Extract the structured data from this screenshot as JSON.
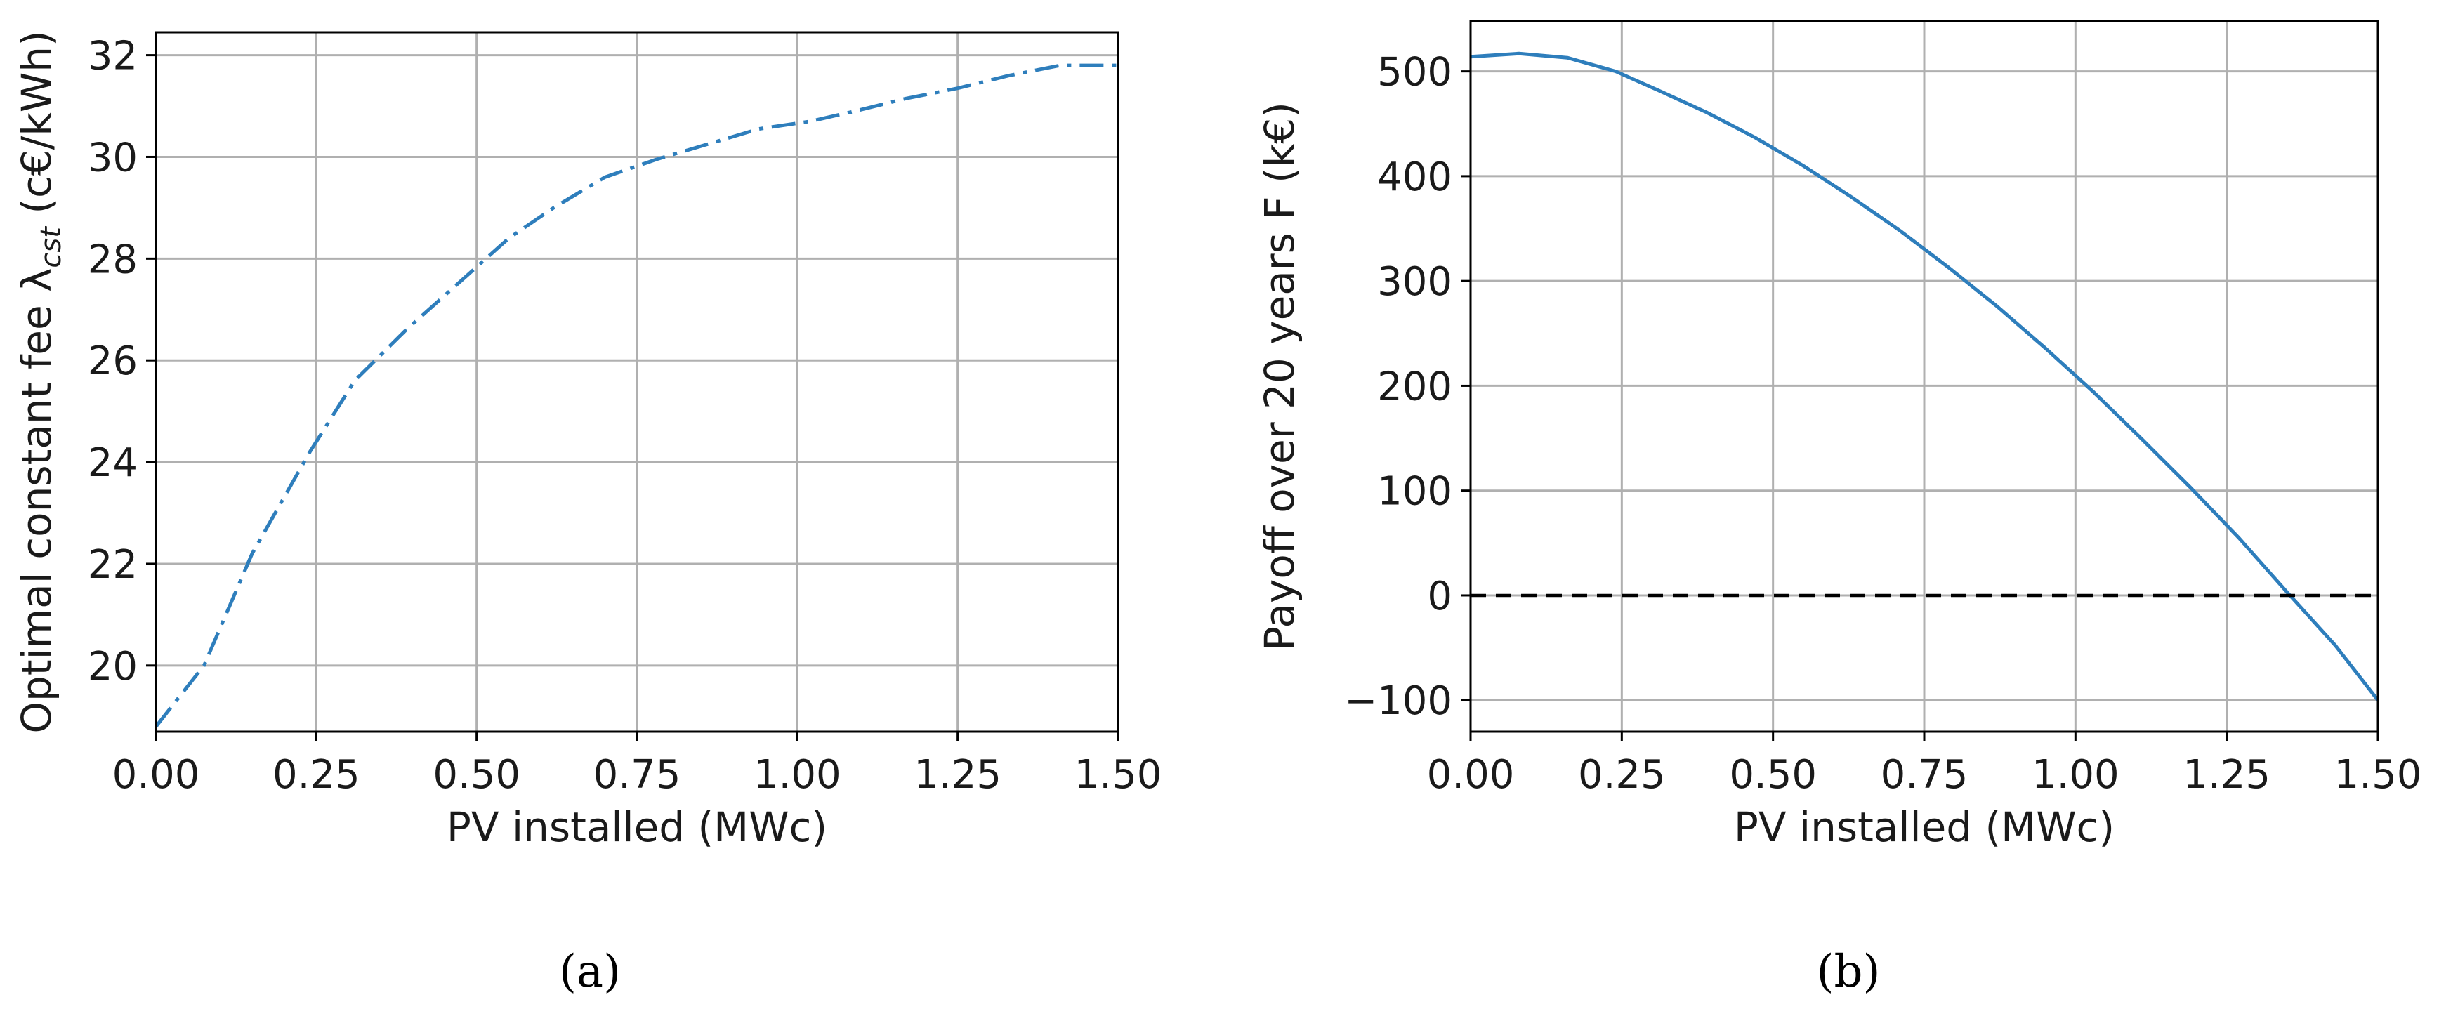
{
  "chart_data": [
    {
      "id": "a",
      "type": "line",
      "panel_label": "(a)",
      "xlabel": "PV installed (MWc)",
      "ylabel_main": "Optimal constant fee λ",
      "ylabel_sub": "cst",
      "ylabel_unit": " (c€/kWh)",
      "xlim": [
        0,
        1.5
      ],
      "ylim": [
        18.7,
        32.45
      ],
      "xticks": [
        0,
        0.25,
        0.5,
        0.75,
        1.0,
        1.25,
        1.5
      ],
      "xtick_labels": [
        "0.00",
        "0.25",
        "0.50",
        "0.75",
        "1.00",
        "1.25",
        "1.50"
      ],
      "yticks": [
        20,
        22,
        24,
        26,
        28,
        30,
        32
      ],
      "ytick_labels": [
        "20",
        "22",
        "24",
        "26",
        "28",
        "30",
        "32"
      ],
      "grid": true,
      "series": [
        {
          "style": "dashdot",
          "color": "#2e7ebc",
          "x": [
            0,
            0.075,
            0.15,
            0.24,
            0.31,
            0.39,
            0.47,
            0.55,
            0.62,
            0.7,
            0.78,
            0.86,
            0.94,
            1.02,
            1.09,
            1.17,
            1.25,
            1.33,
            1.41,
            1.5
          ],
          "y": [
            18.8,
            20.0,
            22.2,
            24.2,
            25.6,
            26.6,
            27.5,
            28.4,
            29.0,
            29.6,
            29.95,
            30.25,
            30.55,
            30.7,
            30.9,
            31.15,
            31.35,
            31.6,
            31.8,
            31.8
          ]
        }
      ]
    },
    {
      "id": "b",
      "type": "line",
      "panel_label": "(b)",
      "xlabel": "PV installed (MWc)",
      "ylabel": "Payoff over 20 years  F (k€)",
      "xlim": [
        0,
        1.5
      ],
      "ylim": [
        -130,
        548
      ],
      "xticks": [
        0,
        0.25,
        0.5,
        0.75,
        1.0,
        1.25,
        1.5
      ],
      "xtick_labels": [
        "0.00",
        "0.25",
        "0.50",
        "0.75",
        "1.00",
        "1.25",
        "1.50"
      ],
      "yticks": [
        -100,
        0,
        100,
        200,
        300,
        400,
        500
      ],
      "ytick_labels": [
        "−100",
        "0",
        "100",
        "200",
        "300",
        "400",
        "500"
      ],
      "grid": true,
      "series": [
        {
          "style": "solid",
          "color": "#2e7ebc",
          "x": [
            0,
            0.08,
            0.16,
            0.24,
            0.31,
            0.39,
            0.47,
            0.55,
            0.63,
            0.71,
            0.79,
            0.87,
            0.95,
            1.03,
            1.11,
            1.19,
            1.27,
            1.35,
            1.43,
            1.5
          ],
          "y": [
            514,
            517,
            513,
            500,
            482,
            461,
            437,
            410,
            380,
            348,
            313,
            276,
            236,
            194,
            149,
            103,
            55,
            3,
            -48,
            -100
          ]
        },
        {
          "style": "dashed",
          "color": "#000000",
          "x": [
            0,
            1.5
          ],
          "y": [
            0,
            0
          ]
        }
      ]
    }
  ]
}
